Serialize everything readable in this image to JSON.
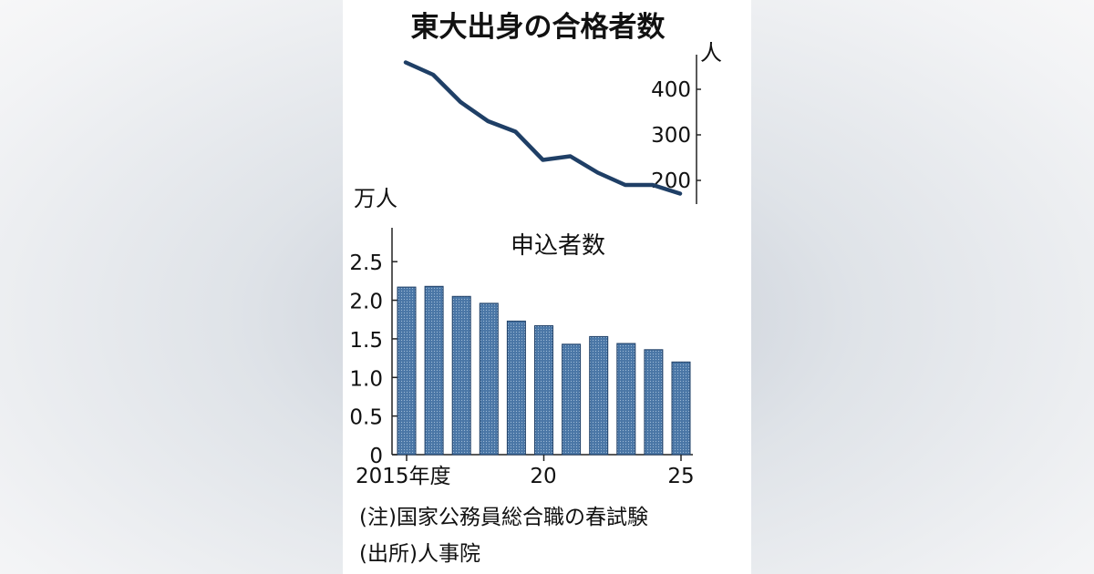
{
  "chart_data": [
    {
      "type": "line",
      "title": "東大出身の合格者数",
      "unit_label": "人",
      "x": [
        2015,
        2016,
        2017,
        2018,
        2019,
        2020,
        2021,
        2022,
        2023,
        2024,
        2025
      ],
      "values": [
        459,
        432,
        372,
        330,
        307,
        245,
        253,
        217,
        190,
        190,
        171
      ],
      "yticks": [
        200,
        300,
        400
      ],
      "color": "#1f3f66"
    },
    {
      "type": "bar",
      "title": "申込者数",
      "unit_label": "万人",
      "x": [
        2015,
        2016,
        2017,
        2018,
        2019,
        2020,
        2021,
        2022,
        2023,
        2024,
        2025
      ],
      "values": [
        2.17,
        2.18,
        2.05,
        1.96,
        1.73,
        1.67,
        1.43,
        1.53,
        1.44,
        1.36,
        1.2
      ],
      "yticks": [
        "0",
        "0.5",
        "1.0",
        "1.5",
        "2.0",
        "2.5"
      ],
      "ylim": [
        0,
        2.75
      ],
      "xtick_labels": [
        "2015年度",
        "20",
        "25"
      ],
      "color": "#3f6a99"
    }
  ],
  "notes": {
    "note": "(注)国家公務員総合職の春試験",
    "source": "(出所)人事院"
  }
}
